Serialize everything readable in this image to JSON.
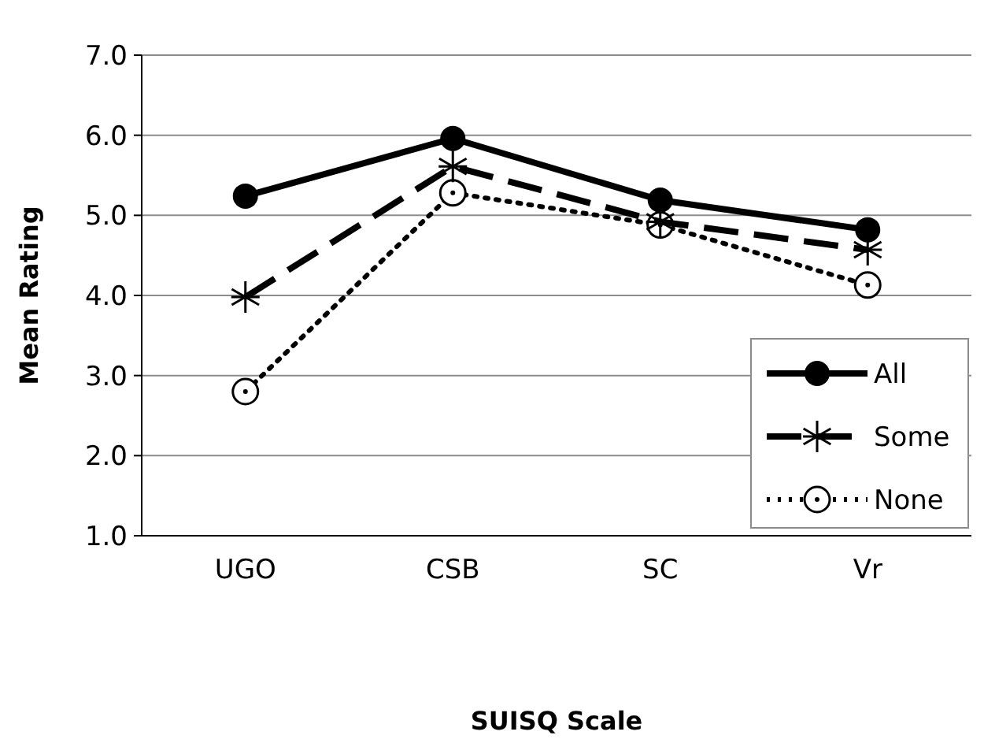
{
  "chart_data": {
    "type": "line",
    "xlabel": "SUISQ Scale",
    "ylabel": "Mean Rating",
    "categories": [
      "UGO",
      "CSB",
      "SC",
      "Vr"
    ],
    "series": [
      {
        "name": "All",
        "color": "#000000",
        "values": [
          5.24,
          5.96,
          5.19,
          4.82
        ],
        "marker": "circle",
        "line_style": "solid"
      },
      {
        "name": "Some",
        "color": "#000000",
        "values": [
          3.98,
          5.61,
          4.92,
          4.57
        ],
        "marker": "cross",
        "line_style": "dashed"
      },
      {
        "name": "None",
        "color": "#000000",
        "values": [
          2.8,
          5.28,
          4.88,
          4.13
        ],
        "marker": "circle",
        "line_style": "dotted"
      }
    ],
    "ylim": [
      1,
      7
    ],
    "yticks": [
      {
        "value": 1,
        "label": "1.0"
      },
      {
        "value": 2,
        "label": "2.0"
      },
      {
        "value": 3,
        "label": "3.0"
      },
      {
        "value": 4,
        "label": "4.0"
      },
      {
        "value": 5,
        "label": "5.0"
      },
      {
        "value": 6,
        "label": "6.0"
      },
      {
        "value": 7,
        "label": "7.0"
      }
    ],
    "grid": "y",
    "legend": "bottom right"
  }
}
